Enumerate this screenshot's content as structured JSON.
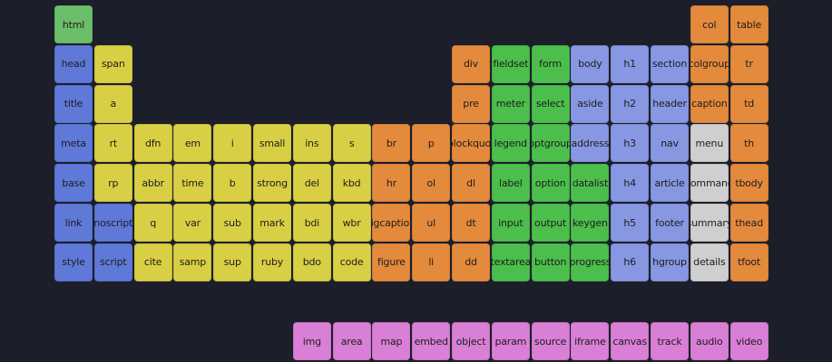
{
  "colors": {
    "background": "#1c1f2a",
    "green": "#6bbf6b",
    "blue": "#5f79d8",
    "yellow": "#d9cf45",
    "orange": "#e48a3d",
    "bright_green": "#4cbe4c",
    "periwinkle": "#8797e2",
    "gray": "#cfcfcf",
    "pink": "#d97fd6"
  },
  "elements": [
    {
      "label": "html",
      "col": 1,
      "row": 1,
      "color": "green"
    },
    {
      "label": "col",
      "col": 18,
      "row": 1,
      "color": "orange"
    },
    {
      "label": "table",
      "col": 19,
      "row": 1,
      "color": "orange"
    },
    {
      "label": "head",
      "col": 1,
      "row": 2,
      "color": "blue"
    },
    {
      "label": "span",
      "col": 2,
      "row": 2,
      "color": "yellow"
    },
    {
      "label": "div",
      "col": 11,
      "row": 2,
      "color": "orange"
    },
    {
      "label": "fieldset",
      "col": 12,
      "row": 2,
      "color": "bright_green"
    },
    {
      "label": "form",
      "col": 13,
      "row": 2,
      "color": "bright_green"
    },
    {
      "label": "body",
      "col": 14,
      "row": 2,
      "color": "periwinkle"
    },
    {
      "label": "h1",
      "col": 15,
      "row": 2,
      "color": "periwinkle"
    },
    {
      "label": "section",
      "col": 16,
      "row": 2,
      "color": "periwinkle"
    },
    {
      "label": "colgroup",
      "col": 17,
      "row": 2,
      "color": "orange"
    },
    {
      "label": "tr",
      "col": 18,
      "row": 2,
      "color": "orange"
    },
    {
      "label": "title",
      "col": 1,
      "row": 3,
      "color": "blue"
    },
    {
      "label": "a",
      "col": 2,
      "row": 3,
      "color": "yellow"
    },
    {
      "label": "pre",
      "col": 11,
      "row": 3,
      "color": "orange"
    },
    {
      "label": "meter",
      "col": 12,
      "row": 3,
      "color": "bright_green"
    },
    {
      "label": "select",
      "col": 13,
      "row": 3,
      "color": "bright_green"
    },
    {
      "label": "aside",
      "col": 14,
      "row": 3,
      "color": "periwinkle"
    },
    {
      "label": "h2",
      "col": 15,
      "row": 3,
      "color": "periwinkle"
    },
    {
      "label": "header",
      "col": 16,
      "row": 3,
      "color": "periwinkle"
    },
    {
      "label": "caption",
      "col": 17,
      "row": 3,
      "color": "orange"
    },
    {
      "label": "td",
      "col": 18,
      "row": 3,
      "color": "orange"
    },
    {
      "label": "meta",
      "col": 1,
      "row": 4,
      "color": "blue"
    },
    {
      "label": "rt",
      "col": 2,
      "row": 4,
      "color": "yellow"
    },
    {
      "label": "dfn",
      "col": 3,
      "row": 4,
      "color": "yellow"
    },
    {
      "label": "em",
      "col": 4,
      "row": 4,
      "color": "yellow"
    },
    {
      "label": "i",
      "col": 5,
      "row": 4,
      "color": "yellow"
    },
    {
      "label": "small",
      "col": 6,
      "row": 4,
      "color": "yellow"
    },
    {
      "label": "ins",
      "col": 7,
      "row": 4,
      "color": "yellow"
    },
    {
      "label": "s",
      "col": 8,
      "row": 4,
      "color": "yellow"
    },
    {
      "label": "br",
      "col": 9,
      "row": 4,
      "color": "orange"
    },
    {
      "label": "p",
      "col": 10,
      "row": 4,
      "color": "orange"
    },
    {
      "label": "blockquot",
      "col": 11,
      "row": 4,
      "color": "orange"
    },
    {
      "label": "legend",
      "col": 12,
      "row": 4,
      "color": "bright_green"
    },
    {
      "label": "optgroup",
      "col": 13,
      "row": 4,
      "color": "bright_green"
    },
    {
      "label": "address",
      "col": 14,
      "row": 4,
      "color": "periwinkle"
    },
    {
      "label": "h3",
      "col": 15,
      "row": 4,
      "color": "periwinkle"
    },
    {
      "label": "nav",
      "col": 16,
      "row": 4,
      "color": "periwinkle"
    },
    {
      "label": "menu",
      "col": 17,
      "row": 4,
      "color": "gray"
    },
    {
      "label": "th",
      "col": 18,
      "row": 4,
      "color": "orange"
    },
    {
      "label": "base",
      "col": 1,
      "row": 5,
      "color": "blue"
    },
    {
      "label": "rp",
      "col": 2,
      "row": 5,
      "color": "yellow"
    },
    {
      "label": "abbr",
      "col": 3,
      "row": 5,
      "color": "yellow"
    },
    {
      "label": "time",
      "col": 4,
      "row": 5,
      "color": "yellow"
    },
    {
      "label": "b",
      "col": 5,
      "row": 5,
      "color": "yellow"
    },
    {
      "label": "strong",
      "col": 6,
      "row": 5,
      "color": "yellow"
    },
    {
      "label": "del",
      "col": 7,
      "row": 5,
      "color": "yellow"
    },
    {
      "label": "kbd",
      "col": 8,
      "row": 5,
      "color": "yellow"
    },
    {
      "label": "hr",
      "col": 9,
      "row": 5,
      "color": "orange"
    },
    {
      "label": "ol",
      "col": 10,
      "row": 5,
      "color": "orange"
    },
    {
      "label": "dl",
      "col": 11,
      "row": 5,
      "color": "orange"
    },
    {
      "label": "label",
      "col": 12,
      "row": 5,
      "color": "bright_green"
    },
    {
      "label": "option",
      "col": 13,
      "row": 5,
      "color": "bright_green"
    },
    {
      "label": "datalist",
      "col": 14,
      "row": 5,
      "color": "bright_green"
    },
    {
      "label": "h4",
      "col": 15,
      "row": 5,
      "color": "periwinkle"
    },
    {
      "label": "article",
      "col": 16,
      "row": 5,
      "color": "periwinkle"
    },
    {
      "label": "command",
      "col": 17,
      "row": 5,
      "color": "gray"
    },
    {
      "label": "tbody",
      "col": 18,
      "row": 5,
      "color": "orange"
    },
    {
      "label": "link",
      "col": 1,
      "row": 6,
      "color": "blue"
    },
    {
      "label": "noscript",
      "col": 2,
      "row": 6,
      "color": "blue"
    },
    {
      "label": "q",
      "col": 3,
      "row": 6,
      "color": "yellow"
    },
    {
      "label": "var",
      "col": 4,
      "row": 6,
      "color": "yellow"
    },
    {
      "label": "sub",
      "col": 5,
      "row": 6,
      "color": "yellow"
    },
    {
      "label": "mark",
      "col": 6,
      "row": 6,
      "color": "yellow"
    },
    {
      "label": "bdi",
      "col": 7,
      "row": 6,
      "color": "yellow"
    },
    {
      "label": "wbr",
      "col": 8,
      "row": 6,
      "color": "yellow"
    },
    {
      "label": "figcaption",
      "col": 9,
      "row": 6,
      "color": "orange"
    },
    {
      "label": "ul",
      "col": 10,
      "row": 6,
      "color": "orange"
    },
    {
      "label": "dt",
      "col": 11,
      "row": 6,
      "color": "orange"
    },
    {
      "label": "input",
      "col": 12,
      "row": 6,
      "color": "bright_green"
    },
    {
      "label": "output",
      "col": 13,
      "row": 6,
      "color": "bright_green"
    },
    {
      "label": "keygen",
      "col": 14,
      "row": 6,
      "color": "bright_green"
    },
    {
      "label": "h5",
      "col": 15,
      "row": 6,
      "color": "periwinkle"
    },
    {
      "label": "footer",
      "col": 16,
      "row": 6,
      "color": "periwinkle"
    },
    {
      "label": "summary",
      "col": 17,
      "row": 6,
      "color": "gray"
    },
    {
      "label": "thead",
      "col": 18,
      "row": 6,
      "color": "orange"
    },
    {
      "label": "style",
      "col": 1,
      "row": 7,
      "color": "blue"
    },
    {
      "label": "script",
      "col": 2,
      "row": 7,
      "color": "blue"
    },
    {
      "label": "cite",
      "col": 3,
      "row": 7,
      "color": "yellow"
    },
    {
      "label": "samp",
      "col": 4,
      "row": 7,
      "color": "yellow"
    },
    {
      "label": "sup",
      "col": 5,
      "row": 7,
      "color": "yellow"
    },
    {
      "label": "ruby",
      "col": 6,
      "row": 7,
      "color": "yellow"
    },
    {
      "label": "bdo",
      "col": 7,
      "row": 7,
      "color": "yellow"
    },
    {
      "label": "code",
      "col": 8,
      "row": 7,
      "color": "yellow"
    },
    {
      "label": "figure",
      "col": 9,
      "row": 7,
      "color": "orange"
    },
    {
      "label": "li",
      "col": 10,
      "row": 7,
      "color": "orange"
    },
    {
      "label": "dd",
      "col": 11,
      "row": 7,
      "color": "orange"
    },
    {
      "label": "textarea",
      "col": 12,
      "row": 7,
      "color": "bright_green"
    },
    {
      "label": "button",
      "col": 13,
      "row": 7,
      "color": "bright_green"
    },
    {
      "label": "progress",
      "col": 14,
      "row": 7,
      "color": "bright_green"
    },
    {
      "label": "h6",
      "col": 15,
      "row": 7,
      "color": "periwinkle"
    },
    {
      "label": "hgroup",
      "col": 16,
      "row": 7,
      "color": "periwinkle"
    },
    {
      "label": "details",
      "col": 17,
      "row": 7,
      "color": "gray"
    },
    {
      "label": "tfoot",
      "col": 18,
      "row": 7,
      "color": "orange"
    },
    {
      "label": "img",
      "col": 7,
      "row": 9,
      "color": "pink"
    },
    {
      "label": "area",
      "col": 8,
      "row": 9,
      "color": "pink"
    },
    {
      "label": "map",
      "col": 9,
      "row": 9,
      "color": "pink"
    },
    {
      "label": "embed",
      "col": 10,
      "row": 9,
      "color": "pink"
    },
    {
      "label": "object",
      "col": 11,
      "row": 9,
      "color": "pink"
    },
    {
      "label": "param",
      "col": 12,
      "row": 9,
      "color": "pink"
    },
    {
      "label": "source",
      "col": 13,
      "row": 9,
      "color": "pink"
    },
    {
      "label": "iframe",
      "col": 14,
      "row": 9,
      "color": "pink"
    },
    {
      "label": "canvas",
      "col": 15,
      "row": 9,
      "color": "pink"
    },
    {
      "label": "track",
      "col": 16,
      "row": 9,
      "color": "pink"
    },
    {
      "label": "audio",
      "col": 17,
      "row": 9,
      "color": "pink"
    },
    {
      "label": "video",
      "col": 18,
      "row": 9,
      "color": "pink"
    }
  ]
}
